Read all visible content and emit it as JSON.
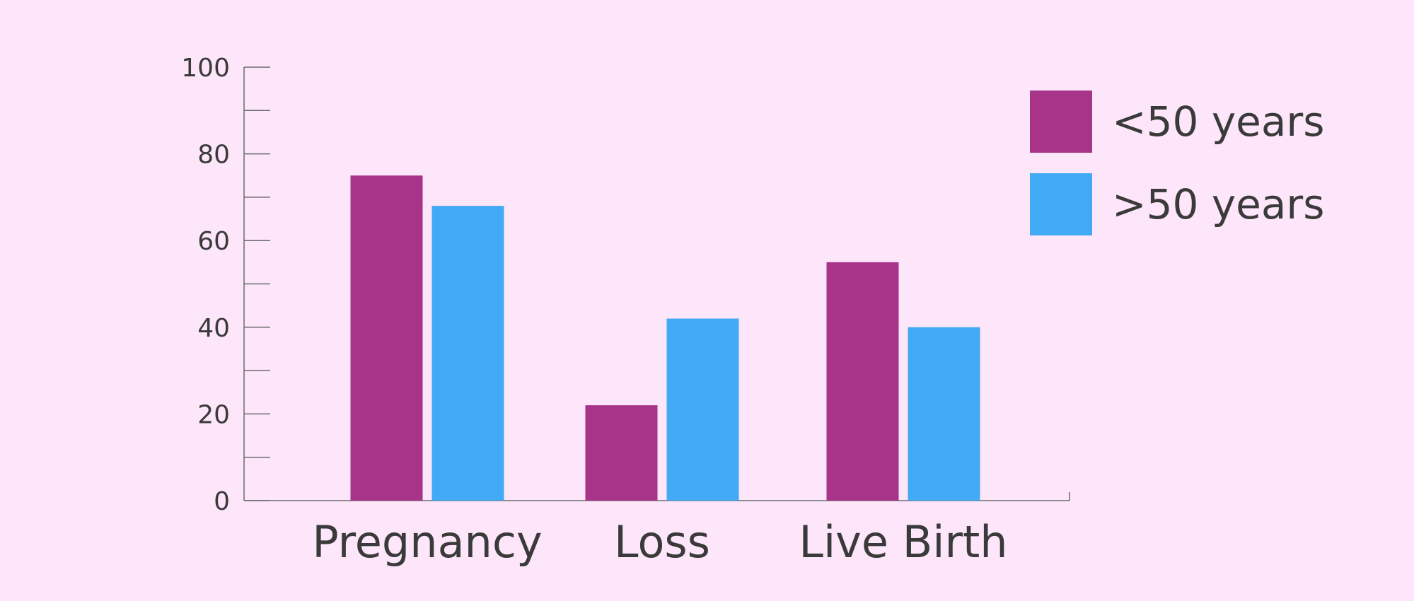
{
  "chart_data": {
    "type": "bar",
    "categories": [
      "Pregnancy",
      "Loss",
      "Live Birth"
    ],
    "series": [
      {
        "name": "<50 years",
        "color": "#a8348a",
        "values": [
          75,
          22,
          55
        ]
      },
      {
        "name": ">50 years",
        "color": "#42a9f5",
        "values": [
          68,
          42,
          40
        ]
      }
    ],
    "ylim": [
      0,
      100
    ],
    "y_ticks": [
      0,
      20,
      40,
      60,
      80,
      100
    ],
    "y_minor_step": 10,
    "grid": false,
    "legend_position": "top-right",
    "title": "",
    "xlabel": "",
    "ylabel": ""
  },
  "colors": {
    "background": "#fde6fa",
    "axis": "#6b6b6b",
    "text": "#3a3a3a"
  }
}
